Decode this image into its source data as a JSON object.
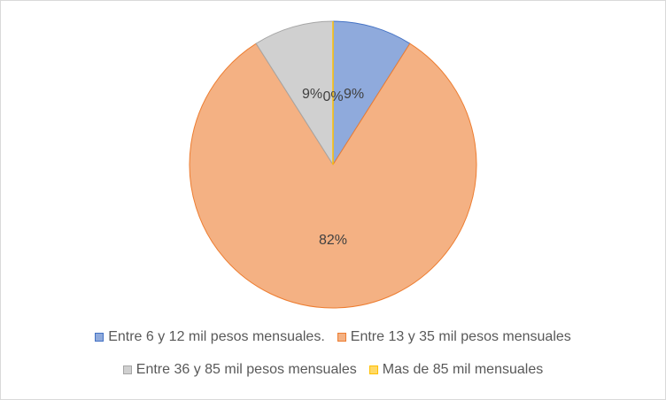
{
  "chart_data": {
    "type": "pie",
    "title": "",
    "slices": [
      {
        "label": "Entre 6 y 12 mil pesos mensuales.",
        "value": 9,
        "display": "9%",
        "color": "#8faadc",
        "stroke": "#4472c4"
      },
      {
        "label": "Entre 13 y 35 mil pesos mensuales",
        "value": 82,
        "display": "82%",
        "color": "#f4b183",
        "stroke": "#ed7d31"
      },
      {
        "label": "Entre 36 y 85 mil pesos mensuales",
        "value": 9,
        "display": "9%",
        "color": "#d0d0d0",
        "stroke": "#a5a5a5"
      },
      {
        "label": "Mas de 85 mil mensuales",
        "value": 0,
        "display": "0%",
        "color": "#ffd966",
        "stroke": "#ffc000"
      }
    ],
    "legend_position": "bottom"
  }
}
